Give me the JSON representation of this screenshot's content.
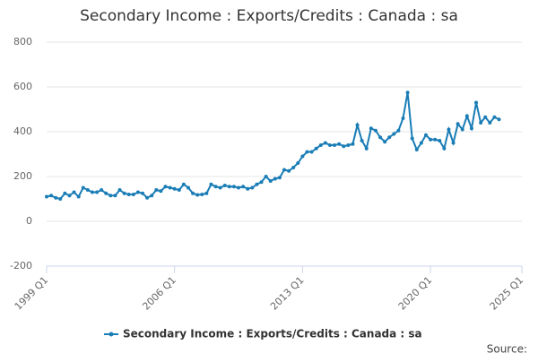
{
  "chart_data": {
    "type": "line",
    "title": "Secondary Income : Exports/Credits : Canada : sa",
    "source": "Source:",
    "x": [
      1999,
      1999.25,
      1999.5,
      1999.75,
      2000,
      2000.25,
      2000.5,
      2000.75,
      2001,
      2001.25,
      2001.5,
      2001.75,
      2002,
      2002.25,
      2002.5,
      2002.75,
      2003,
      2003.25,
      2003.5,
      2003.75,
      2004,
      2004.25,
      2004.5,
      2004.75,
      2005,
      2005.25,
      2005.5,
      2005.75,
      2006,
      2006.25,
      2006.5,
      2006.75,
      2007,
      2007.25,
      2007.5,
      2007.75,
      2008,
      2008.25,
      2008.5,
      2008.75,
      2009,
      2009.25,
      2009.5,
      2009.75,
      2010,
      2010.25,
      2010.5,
      2010.75,
      2011,
      2011.25,
      2011.5,
      2011.75,
      2012,
      2012.25,
      2012.5,
      2012.75,
      2013,
      2013.25,
      2013.5,
      2013.75,
      2014,
      2014.25,
      2014.5,
      2014.75,
      2015,
      2015.25,
      2015.5,
      2015.75,
      2016,
      2016.25,
      2016.5,
      2016.75,
      2017,
      2017.25,
      2017.5,
      2017.75,
      2018,
      2018.25,
      2018.5,
      2018.75,
      2019,
      2019.25,
      2019.5,
      2019.75,
      2020,
      2020.25,
      2020.5,
      2020.75,
      2021,
      2021.25,
      2021.5,
      2021.75,
      2022,
      2022.25,
      2022.5,
      2022.75,
      2023,
      2023.25,
      2023.5,
      2023.75
    ],
    "series": [
      {
        "name": "Secondary Income : Exports/Credits : Canada : sa",
        "color": "#1a7db6",
        "values": [
          110,
          115,
          105,
          100,
          125,
          115,
          130,
          110,
          150,
          140,
          130,
          130,
          140,
          125,
          115,
          115,
          140,
          125,
          120,
          120,
          130,
          125,
          105,
          115,
          140,
          135,
          155,
          150,
          145,
          140,
          165,
          150,
          125,
          118,
          120,
          125,
          165,
          155,
          150,
          160,
          155,
          155,
          150,
          155,
          145,
          150,
          165,
          175,
          200,
          180,
          190,
          195,
          230,
          225,
          240,
          260,
          290,
          310,
          310,
          325,
          340,
          350,
          340,
          340,
          345,
          335,
          340,
          345,
          430,
          360,
          325,
          415,
          405,
          375,
          355,
          375,
          390,
          405,
          460,
          575,
          370,
          320,
          350,
          385,
          365,
          365,
          360,
          325,
          410,
          350,
          435,
          410,
          470,
          415,
          530,
          440,
          465,
          440,
          465,
          455
        ]
      }
    ],
    "xlim": [
      1999,
      2025
    ],
    "xticks": [
      {
        "value": 1999,
        "label": "1999 Q1"
      },
      {
        "value": 2006,
        "label": "2006 Q1"
      },
      {
        "value": 2013,
        "label": "2013 Q1"
      },
      {
        "value": 2020,
        "label": "2020 Q1"
      },
      {
        "value": 2025,
        "label": "2025 Q1"
      }
    ],
    "ylim": [
      -200,
      800
    ],
    "yticks": [
      -200,
      0,
      200,
      400,
      600,
      800
    ],
    "grid": true
  }
}
